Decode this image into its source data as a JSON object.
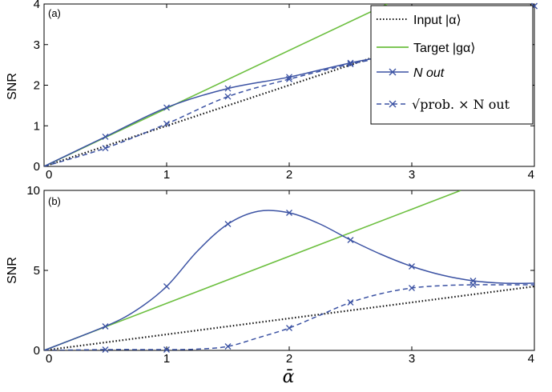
{
  "colors": {
    "input": "#111111",
    "target": "#6cbf3f",
    "nout": "#3b52a3",
    "prob": "#3b52a3",
    "axes": "#000000"
  },
  "legend": {
    "input_label": "Input |α⟩",
    "target_label": "Target |gα⟩",
    "nout_label": "N out",
    "prob_label": "√prob. × N out"
  },
  "chart_data": [
    {
      "panel": "(a)",
      "type": "line",
      "ylabel": "SNR",
      "xlim": [
        0,
        4
      ],
      "ylim": [
        0,
        4
      ],
      "xticks": [
        "0",
        "1",
        "2",
        "3",
        "4"
      ],
      "yticks": [
        "0",
        "1",
        "2",
        "3",
        "4"
      ],
      "legend_position": "top-right",
      "series": [
        {
          "name": "Input |α⟩",
          "style": "dotted",
          "color": "#111111",
          "x": [
            0,
            4
          ],
          "y": [
            0,
            4
          ]
        },
        {
          "name": "Target |gα⟩",
          "style": "solid",
          "color": "#6cbf3f",
          "x": [
            0,
            2.8
          ],
          "y": [
            0,
            4.0
          ]
        },
        {
          "name": "N out",
          "style": "solid-x",
          "color": "#3b52a3",
          "x": [
            0,
            0.5,
            1.0,
            1.5,
            2.0,
            2.5,
            3.0,
            3.5,
            4.0
          ],
          "y": [
            0,
            0.73,
            1.45,
            1.92,
            2.2,
            2.55,
            2.85,
            3.3,
            3.95
          ]
        },
        {
          "name": "√prob. × N out",
          "style": "dashed-x",
          "color": "#3b52a3",
          "x": [
            0,
            0.5,
            1.0,
            1.5,
            2.0,
            2.5,
            3.0,
            3.5,
            4.0
          ],
          "y": [
            0,
            0.45,
            1.05,
            1.72,
            2.15,
            2.52,
            2.83,
            3.3,
            3.95
          ]
        }
      ]
    },
    {
      "panel": "(b)",
      "type": "line",
      "ylabel": "SNR",
      "xlabel": "ᾱ",
      "xlim": [
        0,
        4
      ],
      "ylim": [
        0,
        10
      ],
      "xticks": [
        "0",
        "1",
        "2",
        "3",
        "4"
      ],
      "yticks": [
        "0",
        "5",
        "10"
      ],
      "series": [
        {
          "name": "Input |α⟩",
          "style": "dotted",
          "color": "#111111",
          "x": [
            0,
            4
          ],
          "y": [
            0,
            4
          ]
        },
        {
          "name": "Target |gα⟩",
          "style": "solid",
          "color": "#6cbf3f",
          "x": [
            0,
            3.4
          ],
          "y": [
            0,
            10
          ]
        },
        {
          "name": "N out",
          "style": "solid-x",
          "color": "#3b52a3",
          "x": [
            0,
            0.5,
            0.75,
            1.0,
            1.25,
            1.5,
            1.75,
            2.0,
            2.25,
            2.5,
            2.75,
            3.0,
            3.25,
            3.5,
            3.75,
            4.0
          ],
          "y": [
            0,
            1.5,
            2.5,
            4.0,
            6.2,
            7.9,
            8.7,
            8.6,
            7.9,
            6.9,
            6.0,
            5.25,
            4.7,
            4.35,
            4.2,
            4.2
          ],
          "markers_x": [
            0.5,
            1.0,
            1.5,
            2.0,
            2.5,
            3.0,
            3.5
          ]
        },
        {
          "name": "√prob. × N out",
          "style": "dashed-x",
          "color": "#3b52a3",
          "x": [
            0,
            0.5,
            1.0,
            1.25,
            1.5,
            1.75,
            2.0,
            2.25,
            2.5,
            2.75,
            3.0,
            3.25,
            3.5,
            3.75,
            4.0
          ],
          "y": [
            0,
            0.05,
            0.05,
            0.08,
            0.25,
            0.8,
            1.4,
            2.2,
            3.0,
            3.55,
            3.9,
            4.05,
            4.1,
            4.1,
            4.1
          ],
          "markers_x": [
            0.5,
            1.0,
            1.5,
            2.0,
            2.5,
            3.0,
            3.5
          ]
        }
      ]
    }
  ]
}
